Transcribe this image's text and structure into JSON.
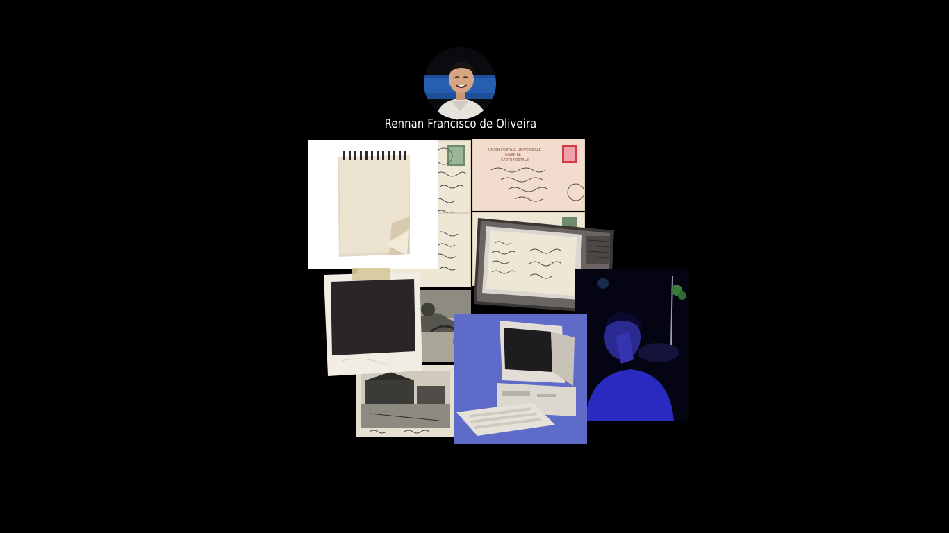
{
  "profile": {
    "name": "Rennan Francisco de Oliveira",
    "avatar_icon": "profile-photo-icon"
  },
  "colors": {
    "background": "#000000",
    "title_text": "#ffffff",
    "computer_backdrop": "#5f6bc8",
    "person_backdrop": "#050514",
    "paper": "#efe7d6"
  },
  "collage": {
    "items": [
      {
        "name": "vintage-postcard-left",
        "icon": "postcard-icon"
      },
      {
        "name": "vintage-postcard-egypt",
        "icon": "postcard-icon",
        "printed_text": [
          "UNION POSTALE UNIVERSELLE",
          "EGYPTE",
          "CARTE POSTALE"
        ]
      },
      {
        "name": "vintage-postcard-handwritten",
        "icon": "postcard-icon"
      },
      {
        "name": "blank-notepad",
        "icon": "notepad-icon"
      },
      {
        "name": "blank-polaroid",
        "icon": "polaroid-icon"
      },
      {
        "name": "sepia-photo-bridge",
        "icon": "photo-icon"
      },
      {
        "name": "sepia-photo-harbor",
        "icon": "photo-icon"
      },
      {
        "name": "retro-television",
        "icon": "television-icon"
      },
      {
        "name": "retro-computer",
        "icon": "computer-icon"
      },
      {
        "name": "person-night-photo",
        "icon": "photo-icon"
      }
    ]
  }
}
